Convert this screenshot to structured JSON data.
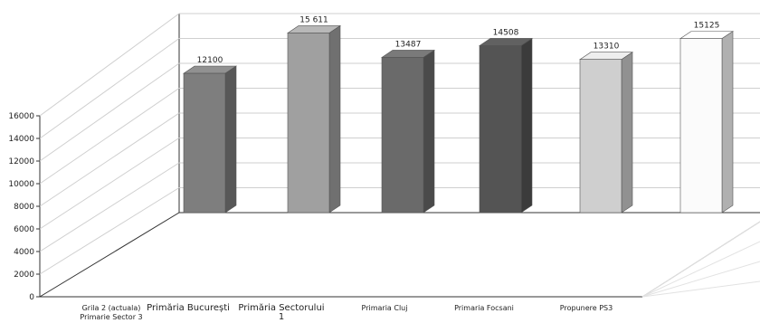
{
  "chart_data": {
    "type": "bar",
    "title": "",
    "xlabel": "",
    "ylabel": "",
    "ylim": [
      0,
      16000
    ],
    "yticks": [
      0,
      2000,
      4000,
      6000,
      8000,
      10000,
      12000,
      14000,
      16000
    ],
    "grid": true,
    "categories": [
      "Grila 2 (actuala) Primarie Sector 3",
      "Primăria București",
      "Primăria Sectorului 1",
      "Primaria Cluj",
      "Primaria Focsani",
      "Propunere PS3"
    ],
    "values": [
      12100,
      15611,
      13487,
      14508,
      13310,
      15125
    ],
    "data_labels": [
      "12100",
      "15 611",
      "13487",
      "14508",
      "13310",
      "15125"
    ],
    "colors": [
      "#7e7e7e",
      "#a0a0a0",
      "#6a6a6a",
      "#545454",
      "#cfcfcf",
      "#fbfbfb"
    ]
  }
}
